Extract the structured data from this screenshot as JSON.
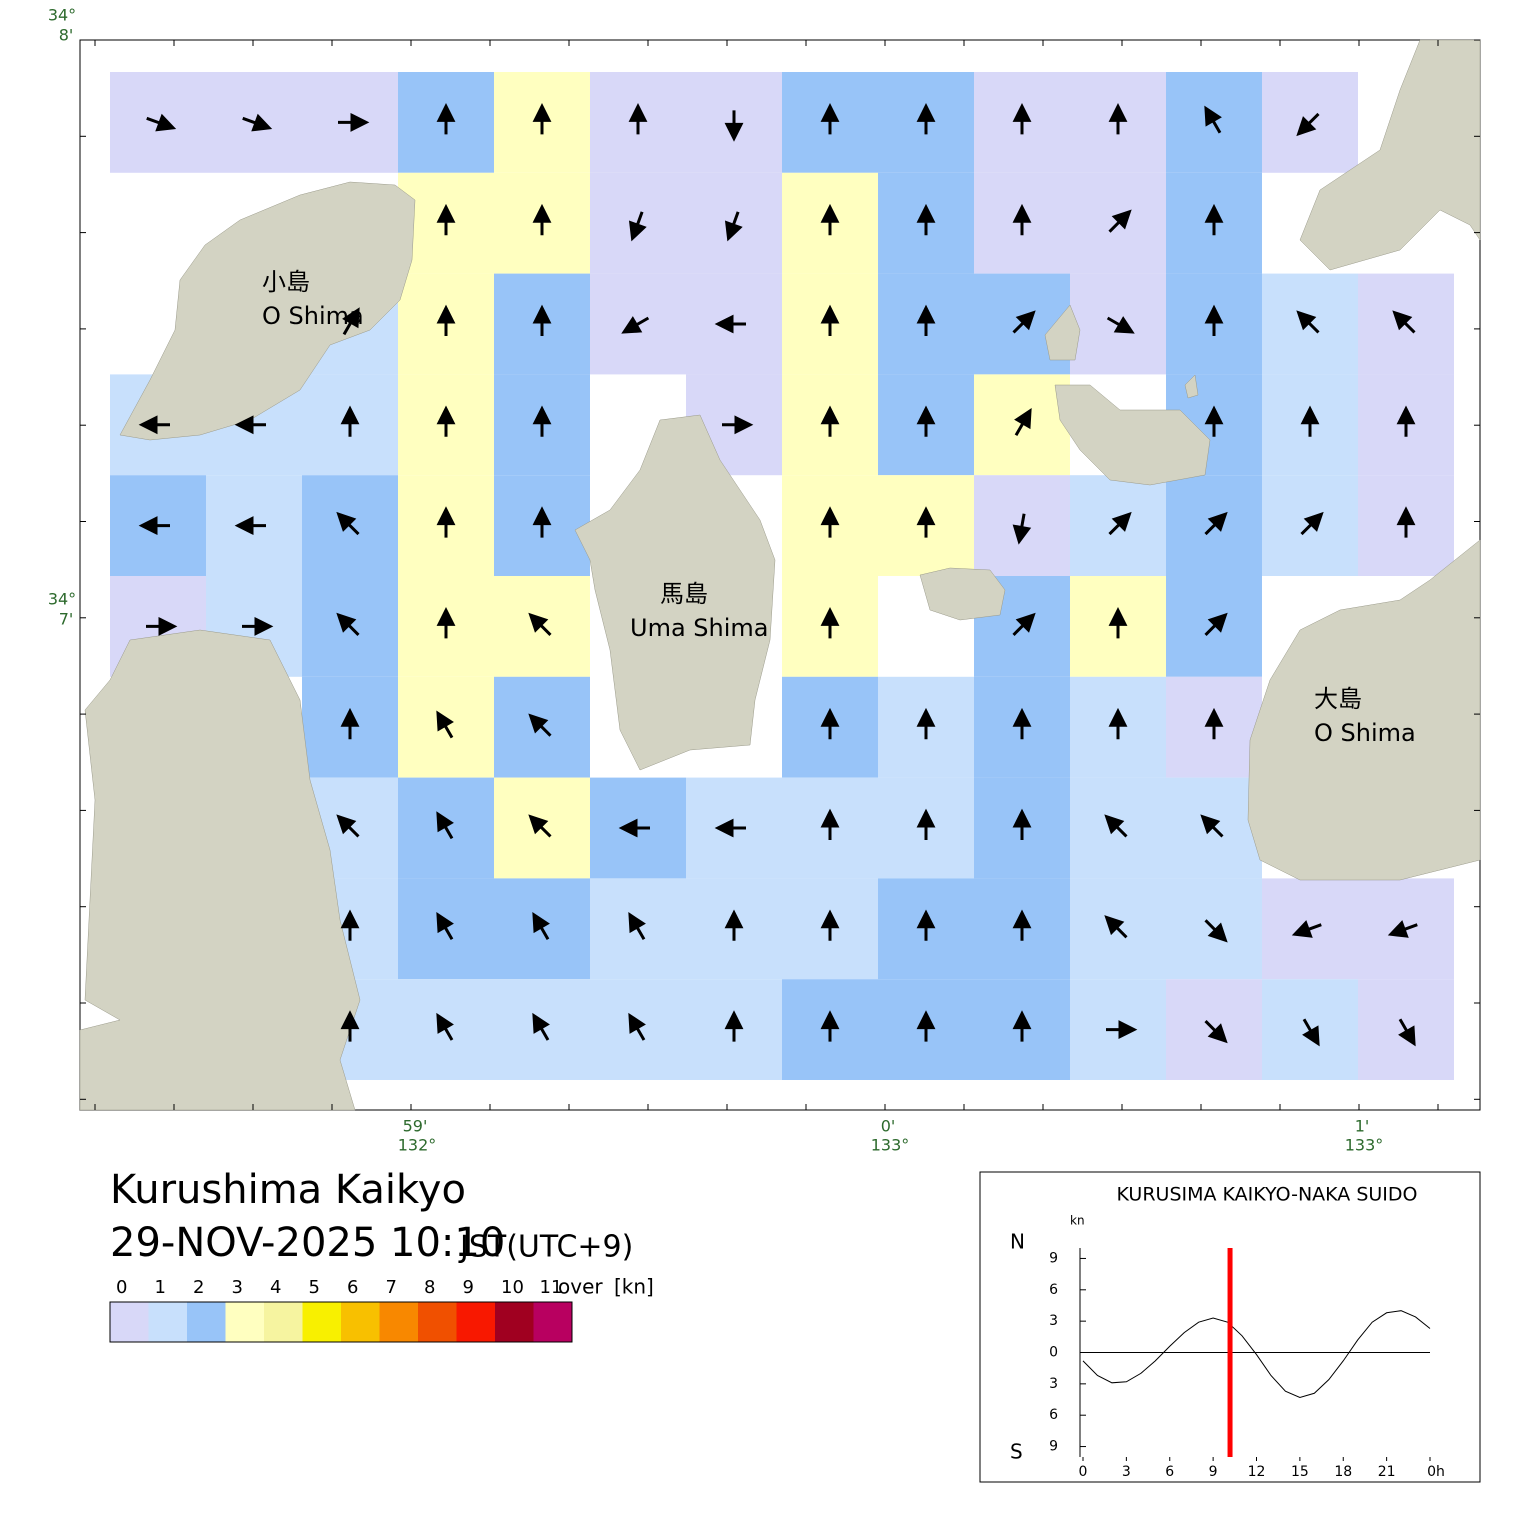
{
  "map": {
    "title": "Kurushima Kaikyo",
    "datetime": "29-NOV-2025 10:10",
    "timezone": "JST(UTC+9)",
    "lat_labels": [
      {
        "deg": "34°",
        "min": "8'"
      },
      {
        "deg": "34°",
        "min": "7'"
      }
    ],
    "lon_labels": [
      {
        "deg": "132°",
        "min": "59'"
      },
      {
        "deg": "133°",
        "min": "0'"
      },
      {
        "deg": "133°",
        "min": "1'"
      }
    ],
    "places": [
      {
        "name_ja": "小島",
        "name_en": "O Shima"
      },
      {
        "name_ja": "馬島",
        "name_en": "Uma Shima"
      },
      {
        "name_ja": "大島",
        "name_en": "O Shima"
      }
    ],
    "current": {
      "speed": [
        [
          0.5,
          0.5,
          0.5,
          2.5,
          3.5,
          0.8,
          0.5,
          2,
          2,
          0.8,
          0.8,
          2,
          0.5,
          null
        ],
        [
          null,
          null,
          null,
          3.5,
          3.5,
          0.8,
          0.5,
          3,
          2,
          0.8,
          0.8,
          2.5,
          null,
          null
        ],
        [
          null,
          null,
          1.2,
          3.5,
          2,
          0.5,
          0.5,
          3.5,
          2.5,
          2,
          0.5,
          2.5,
          1.5,
          0.5
        ],
        [
          1.5,
          1,
          1.5,
          3.5,
          2,
          null,
          0.5,
          3.5,
          2,
          3.5,
          null,
          2.5,
          1.5,
          0.8
        ],
        [
          2,
          1.5,
          2,
          3.5,
          2,
          null,
          null,
          3.5,
          3.5,
          0.8,
          1.5,
          2,
          1.2,
          0.8
        ],
        [
          0.8,
          1.2,
          2,
          3.5,
          3,
          null,
          null,
          3.5,
          null,
          2,
          3.5,
          2,
          null,
          null
        ],
        [
          null,
          null,
          2,
          3.5,
          2.5,
          null,
          null,
          2,
          1.5,
          2,
          1.5,
          0.8,
          null,
          null
        ],
        [
          null,
          null,
          1.5,
          2,
          3.5,
          2,
          1,
          1.5,
          1.2,
          2,
          1.2,
          1,
          null,
          null
        ],
        [
          null,
          null,
          1.2,
          2,
          2,
          1.5,
          1.2,
          1.2,
          2,
          2,
          1.2,
          1,
          0.8,
          0.5
        ],
        [
          null,
          null,
          1.2,
          1.2,
          1.5,
          1.2,
          1.2,
          2,
          2,
          2,
          1.2,
          0.8,
          1,
          0.5
        ]
      ],
      "direction": [
        [
          110,
          110,
          90,
          0,
          0,
          0,
          180,
          0,
          0,
          0,
          0,
          330,
          225,
          null
        ],
        [
          null,
          null,
          null,
          0,
          0,
          200,
          200,
          0,
          0,
          0,
          45,
          0,
          null,
          null
        ],
        [
          null,
          null,
          30,
          0,
          0,
          240,
          270,
          0,
          0,
          45,
          120,
          0,
          315,
          315
        ],
        [
          270,
          270,
          0,
          0,
          0,
          null,
          90,
          0,
          0,
          30,
          null,
          0,
          0,
          0
        ],
        [
          270,
          270,
          315,
          0,
          0,
          null,
          null,
          0,
          0,
          190,
          45,
          45,
          45,
          0
        ],
        [
          90,
          90,
          315,
          0,
          315,
          null,
          null,
          0,
          null,
          45,
          0,
          45,
          null,
          null
        ],
        [
          null,
          null,
          0,
          330,
          315,
          null,
          null,
          0,
          0,
          0,
          0,
          0,
          null,
          null
        ],
        [
          null,
          null,
          315,
          330,
          315,
          270,
          270,
          0,
          0,
          0,
          315,
          315,
          null,
          null
        ],
        [
          null,
          null,
          0,
          330,
          330,
          330,
          0,
          0,
          0,
          0,
          315,
          135,
          250,
          250
        ],
        [
          null,
          null,
          0,
          330,
          330,
          330,
          0,
          0,
          0,
          0,
          90,
          135,
          150,
          150
        ]
      ]
    }
  },
  "legend": {
    "bounds": [
      0,
      1,
      2,
      3,
      4,
      5,
      6,
      7,
      8,
      9,
      10,
      11
    ],
    "colors": [
      "#d8d8f8",
      "#c8e0fc",
      "#98c4f8",
      "#ffffc0",
      "#f6f4a0",
      "#f8f000",
      "#f8c000",
      "#f88800",
      "#f05000",
      "#f81800",
      "#a00020",
      "#b80060"
    ],
    "over": "over",
    "unit": "[kn]"
  },
  "chart_data": {
    "type": "line",
    "title": "KURUSIMA KAIKYO-NAKA SUIDO",
    "y_unit": "kn",
    "north_label": "N",
    "south_label": "S",
    "x": [
      0,
      1,
      2,
      3,
      4,
      5,
      6,
      7,
      8,
      9,
      10,
      11,
      12,
      13,
      14,
      15,
      16,
      17,
      18,
      19,
      20,
      21,
      22,
      23,
      24
    ],
    "series": [
      {
        "color": "#000000",
        "values": [
          -0.8,
          -2.2,
          -2.9,
          -2.8,
          -2,
          -0.8,
          0.6,
          1.9,
          2.9,
          3.3,
          2.9,
          1.6,
          -0.2,
          -2.2,
          -3.7,
          -4.3,
          -3.9,
          -2.6,
          -0.8,
          1.2,
          2.9,
          3.8,
          4,
          3.4,
          2.3
        ]
      }
    ],
    "xlim": [
      0,
      24
    ],
    "ylim": [
      -10,
      10
    ],
    "xticks": [
      0,
      3,
      6,
      9,
      12,
      15,
      18,
      21,
      {
        "value": 24,
        "label": "0h"
      }
    ],
    "yticks": [
      9,
      6,
      3,
      0,
      {
        "value": -3,
        "label": "3"
      },
      {
        "value": -6,
        "label": "6"
      },
      {
        "value": -9,
        "label": "9"
      }
    ],
    "current_time": 10.17,
    "marker_color": "#ff0000"
  }
}
